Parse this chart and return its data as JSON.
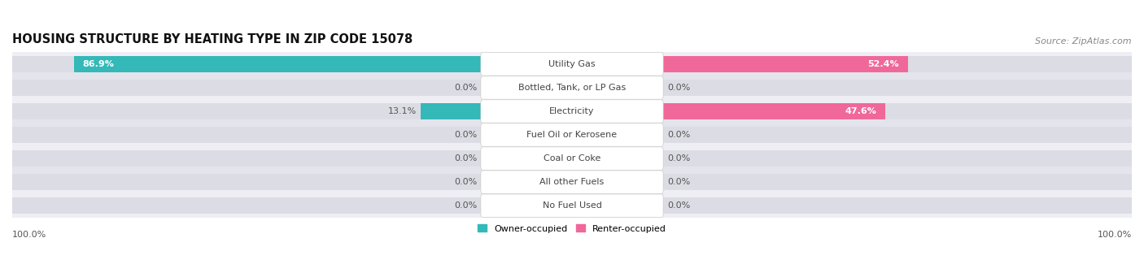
{
  "title": "HOUSING STRUCTURE BY HEATING TYPE IN ZIP CODE 15078",
  "source": "Source: ZipAtlas.com",
  "categories": [
    "Utility Gas",
    "Bottled, Tank, or LP Gas",
    "Electricity",
    "Fuel Oil or Kerosene",
    "Coal or Coke",
    "All other Fuels",
    "No Fuel Used"
  ],
  "owner_values": [
    86.9,
    0.0,
    13.1,
    0.0,
    0.0,
    0.0,
    0.0
  ],
  "renter_values": [
    52.4,
    0.0,
    47.6,
    0.0,
    0.0,
    0.0,
    0.0
  ],
  "owner_color": "#34B8B8",
  "renter_color": "#F0689A",
  "owner_color_light": "#88CFCF",
  "renter_color_light": "#F5AABF",
  "bar_bg_color": "#DCDCE4",
  "row_bg_even": "#EEEEF4",
  "row_bg_odd": "#E4E4EC",
  "title_fontsize": 10.5,
  "source_fontsize": 8,
  "label_fontsize": 8,
  "value_fontsize": 8,
  "x_axis_label": "100.0%"
}
